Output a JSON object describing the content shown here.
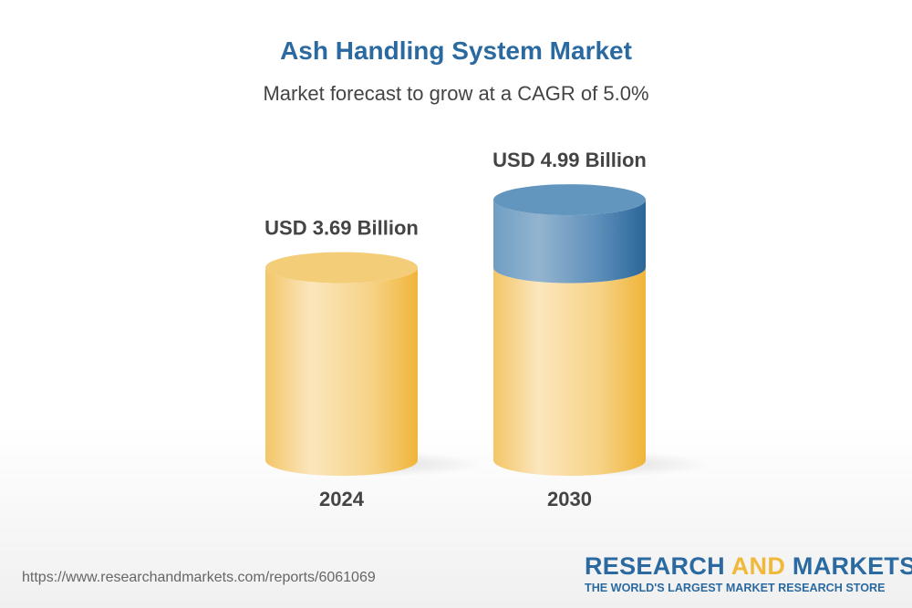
{
  "title": "Ash Handling System Market",
  "subtitle": "Market forecast to grow at a CAGR of 5.0%",
  "footer": {
    "url": "https://www.researchandmarkets.com/reports/6061069"
  },
  "logo": {
    "part1": "RESEARCH ",
    "part2": "AND",
    "part3": " MARKETS",
    "tagline": "THE WORLD'S LARGEST MARKET RESEARCH STORE"
  },
  "colors": {
    "base": "#f3c05a",
    "growth": "#4f86b5",
    "title": "#2b6aa0"
  },
  "chart_data": {
    "type": "bar",
    "style": "3d-cylinder",
    "categories": [
      "2024",
      "2030"
    ],
    "values": [
      3.69,
      4.99
    ],
    "unit": "USD Billion",
    "data_labels": [
      "USD 3.69 Billion",
      "USD 4.99 Billion"
    ],
    "cagr": "5.0%"
  }
}
